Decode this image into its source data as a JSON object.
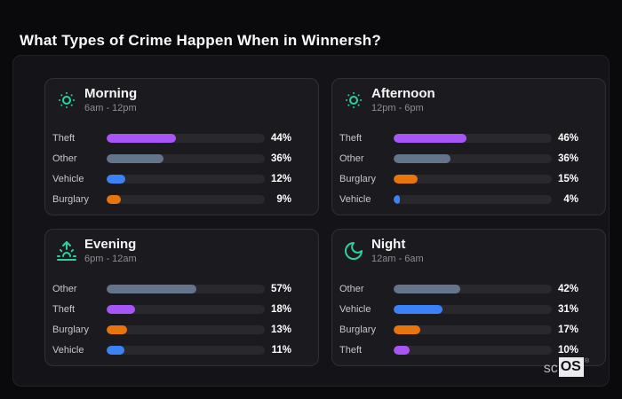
{
  "page": {
    "title": "What Types of Crime Happen When in Winnersh?"
  },
  "colors": {
    "page_bg": "#0a0a0d",
    "panel_bg": "#141418",
    "card_bg": "#1b1b1f",
    "card_border": "#2f2f36",
    "bar_track": "#28282d",
    "icon_accent": "#2dd1a0",
    "title_text": "#fafafa",
    "subtitle_text": "#8c8c95",
    "label_text": "#c6c6cb",
    "value_text": "#ffffff"
  },
  "category_colors": {
    "Theft": "#a855f7",
    "Other": "#64748b",
    "Vehicle": "#3b82f6",
    "Burglary": "#e8740e"
  },
  "chart_data": [
    {
      "type": "bar",
      "title": "Morning",
      "subtitle": "6am - 12pm",
      "icon": "sun-dim-icon",
      "unit": "%",
      "xlim": [
        0,
        100
      ],
      "categories": [
        "Theft",
        "Other",
        "Vehicle",
        "Burglary"
      ],
      "values": [
        44,
        36,
        12,
        9
      ]
    },
    {
      "type": "bar",
      "title": "Afternoon",
      "subtitle": "12pm - 6pm",
      "icon": "sun-dim-icon",
      "unit": "%",
      "xlim": [
        0,
        100
      ],
      "categories": [
        "Theft",
        "Other",
        "Burglary",
        "Vehicle"
      ],
      "values": [
        46,
        36,
        15,
        4
      ]
    },
    {
      "type": "bar",
      "title": "Evening",
      "subtitle": "6pm - 12am",
      "icon": "sunrise-icon",
      "unit": "%",
      "xlim": [
        0,
        100
      ],
      "categories": [
        "Other",
        "Theft",
        "Burglary",
        "Vehicle"
      ],
      "values": [
        57,
        18,
        13,
        11
      ]
    },
    {
      "type": "bar",
      "title": "Night",
      "subtitle": "12am - 6am",
      "icon": "moon-icon",
      "unit": "%",
      "xlim": [
        0,
        100
      ],
      "categories": [
        "Other",
        "Vehicle",
        "Burglary",
        "Theft"
      ],
      "values": [
        42,
        31,
        17,
        10
      ]
    }
  ],
  "watermark": {
    "prefix": "sc",
    "box": "OS",
    "registered": "®"
  }
}
